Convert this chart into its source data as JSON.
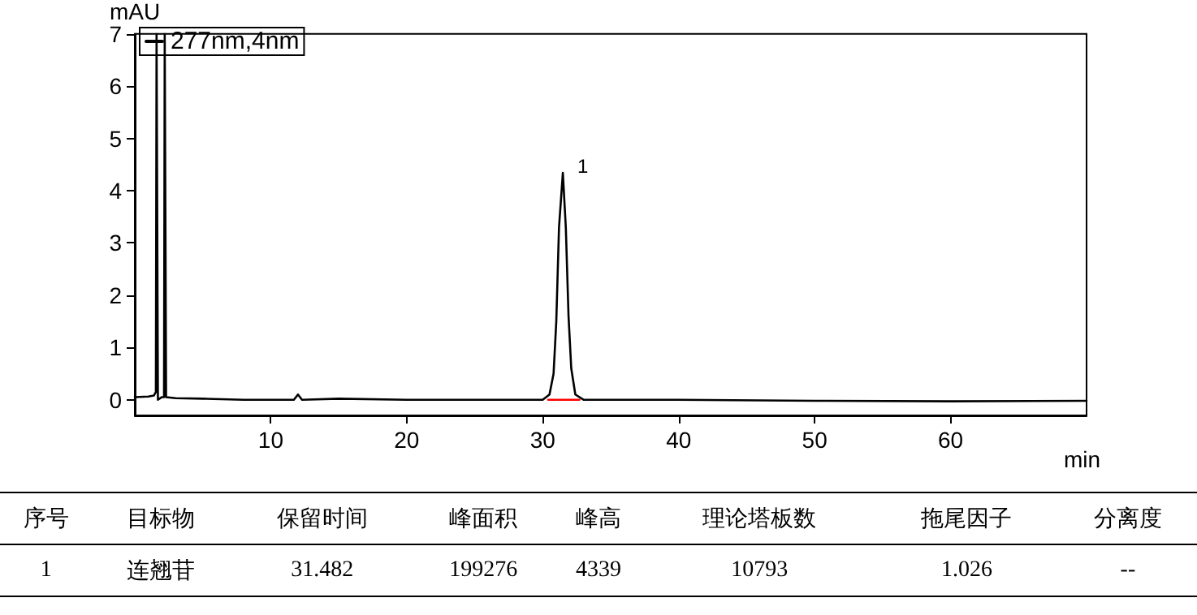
{
  "chart_data": {
    "type": "line",
    "xlabel": "min",
    "ylabel": "mAU",
    "xlim": [
      0,
      70
    ],
    "xticks": [
      10,
      20,
      30,
      40,
      50,
      60
    ],
    "ylim": [
      -0.3,
      7
    ],
    "yticks": [
      0,
      1,
      2,
      3,
      4,
      5,
      6,
      7
    ],
    "series": [
      {
        "name": "277nm,4nm",
        "color": "#000000",
        "x": [
          0,
          1.0,
          1.4,
          1.55,
          1.6,
          1.7,
          2.0,
          2.15,
          2.2,
          2.3,
          3,
          5,
          8,
          11.7,
          12,
          12.3,
          15,
          20,
          25,
          30,
          30.5,
          30.8,
          31.0,
          31.2,
          31.482,
          31.7,
          31.9,
          32.1,
          32.4,
          33,
          40,
          50,
          60,
          70
        ],
        "values": [
          0.05,
          0.06,
          0.08,
          0.15,
          7,
          0,
          0.05,
          0.05,
          7,
          0.05,
          0.03,
          0.02,
          0.0,
          0.0,
          0.1,
          0.0,
          0.02,
          0.0,
          0.0,
          0.0,
          0.1,
          0.5,
          1.5,
          3.3,
          4.34,
          3.3,
          1.6,
          0.6,
          0.1,
          0.0,
          0.0,
          -0.02,
          -0.03,
          -0.02
        ]
      },
      {
        "color": "#ff0000",
        "x": [
          30.4,
          32.7
        ],
        "values": [
          0.0,
          0.0
        ]
      }
    ],
    "annotations": [
      {
        "text": "1",
        "x": 31.482,
        "y": 4.34
      },
      "序号",
      "目标物",
      "保留时间",
      "峰面积",
      "峰高",
      "理论塔板数",
      "拖尾因子",
      "分离度",
      "1",
      "连翘苷",
      "31.482",
      "199276",
      "4339",
      "10793",
      "1.026",
      "--"
    ],
    "legend": "top left",
    "grid": false,
    "marker": "none",
    "line_style": "solid"
  }
}
